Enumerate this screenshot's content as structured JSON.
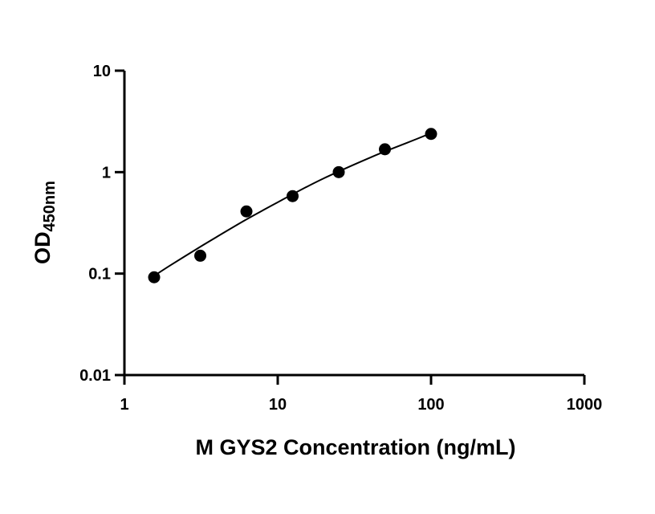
{
  "chart_data": {
    "type": "scatter",
    "title": "",
    "xlabel": "M GYS2 Concentration (ng/mL)",
    "ylabel_main": "OD",
    "ylabel_sub": "450nm",
    "x_scale": "log",
    "y_scale": "log",
    "xlim": [
      1,
      1000
    ],
    "ylim": [
      0.01,
      10
    ],
    "x_ticks": [
      1,
      10,
      100,
      1000
    ],
    "x_tick_labels": [
      "1",
      "10",
      "100",
      "1000"
    ],
    "y_ticks": [
      0.01,
      0.1,
      1,
      10
    ],
    "y_tick_labels": [
      "0.01",
      "0.1",
      "1",
      "10"
    ],
    "grid": false,
    "legend": "none",
    "series": [
      {
        "x": [
          1.5625,
          3.125,
          6.25,
          12.5,
          25,
          50,
          100
        ],
        "y": [
          0.092,
          0.15,
          0.41,
          0.58,
          1.0,
          1.68,
          2.38
        ]
      }
    ],
    "fit_curve": {
      "x": [
        1.5625,
        2,
        3,
        4,
        6,
        8,
        10,
        15,
        20,
        30,
        40,
        50,
        70,
        100
      ],
      "y": [
        0.095,
        0.121,
        0.177,
        0.23,
        0.33,
        0.42,
        0.505,
        0.7,
        0.87,
        1.15,
        1.39,
        1.6,
        1.95,
        2.42
      ]
    },
    "colors": {
      "marker": "#000000",
      "line": "#000000",
      "axis": "#000000"
    }
  }
}
